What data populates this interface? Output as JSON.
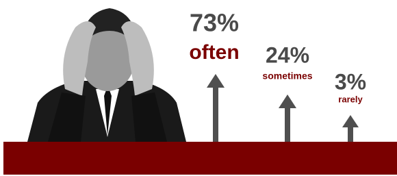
{
  "items": [
    {
      "percent": "73%",
      "label": "often"
    },
    {
      "percent": "24%",
      "label": "sometimes"
    },
    {
      "percent": "3%",
      "label": "rarely"
    }
  ]
}
